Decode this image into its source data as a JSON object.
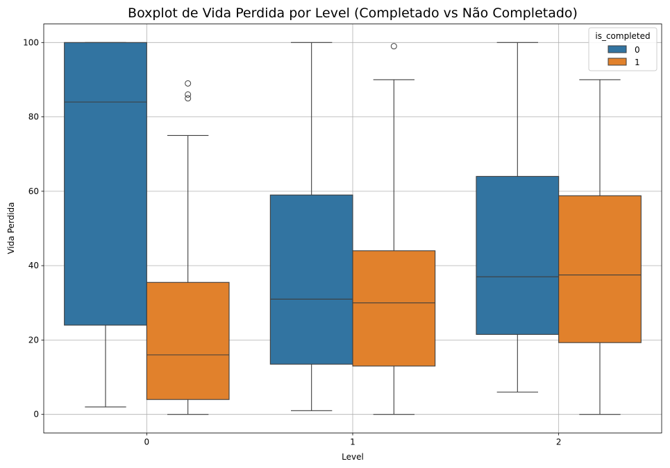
{
  "chart_data": {
    "type": "boxplot",
    "title": "Boxplot de Vida Perdida por Level (Completado vs Não Completado)",
    "xlabel": "Level",
    "ylabel": "Vida Perdida",
    "categories": [
      "0",
      "1",
      "2"
    ],
    "ylim": [
      -5,
      105
    ],
    "yticks": [
      0,
      20,
      40,
      60,
      80,
      100
    ],
    "grid": true,
    "legend": {
      "title": "is_completed",
      "placement": "top-right"
    },
    "series": [
      {
        "name": "0",
        "color": "#3274a1",
        "boxes": [
          {
            "category": "0",
            "whisker_low": 2,
            "q1": 24,
            "median": 84,
            "q3": 100,
            "whisker_high": 100,
            "outliers": []
          },
          {
            "category": "1",
            "whisker_low": 1,
            "q1": 13.5,
            "median": 31,
            "q3": 59,
            "whisker_high": 100,
            "outliers": []
          },
          {
            "category": "2",
            "whisker_low": 6,
            "q1": 21.5,
            "median": 37,
            "q3": 64,
            "whisker_high": 100,
            "outliers": []
          }
        ]
      },
      {
        "name": "1",
        "color": "#e1812c",
        "boxes": [
          {
            "category": "0",
            "whisker_low": 0,
            "q1": 4,
            "median": 16,
            "q3": 35.5,
            "whisker_high": 75,
            "outliers": [
              85,
              86,
              89
            ]
          },
          {
            "category": "1",
            "whisker_low": 0,
            "q1": 13,
            "median": 30,
            "q3": 44,
            "whisker_high": 90,
            "outliers": [
              99
            ]
          },
          {
            "category": "2",
            "whisker_low": 0,
            "q1": 19.3,
            "median": 37.5,
            "q3": 58.8,
            "whisker_high": 90,
            "outliers": []
          }
        ]
      }
    ]
  }
}
